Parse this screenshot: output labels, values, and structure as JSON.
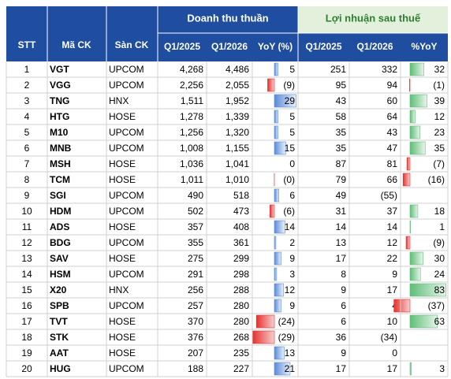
{
  "table": {
    "header": {
      "stt": "STT",
      "ticker": "Mã CK",
      "exchange": "Sàn CK",
      "revenue": "Doanh thu thuần",
      "profit": "Lợi nhuận sau thuế",
      "revenue_cols": [
        "Q1/2025",
        "Q1/2026",
        "YoY (%)"
      ],
      "profit_cols": [
        "Q1/2025",
        "Q1/2026",
        "%YoY"
      ]
    },
    "rows": [
      {
        "stt": 1,
        "ticker": "VGT",
        "exchange": "UPCOM",
        "revenue": [
          {
            "value": 4268,
            "label": "4,268"
          },
          {
            "value": 4486,
            "label": "4,486"
          },
          5
        ],
        "profit": [
          251,
          332,
          32
        ]
      },
      {
        "stt": 2,
        "ticker": "VGG",
        "exchange": "UPCOM",
        "revenue": [
          {
            "value": 2256,
            "label": "2,256"
          },
          {
            "value": 2055,
            "label": "2,055"
          },
          {
            "value": -9,
            "label": "(9)"
          }
        ],
        "profit": [
          95,
          94,
          {
            "value": -1,
            "label": "(1)"
          }
        ]
      },
      {
        "stt": 3,
        "ticker": "TNG",
        "exchange": "HNX",
        "revenue": [
          {
            "value": 1511,
            "label": "1,511"
          },
          {
            "value": 1952,
            "label": "1,952"
          },
          29
        ],
        "profit": [
          43,
          60,
          39
        ]
      },
      {
        "stt": 4,
        "ticker": "HTG",
        "exchange": "HOSE",
        "revenue": [
          {
            "value": 1278,
            "label": "1,278"
          },
          {
            "value": 1339,
            "label": "1,339"
          },
          5
        ],
        "profit": [
          58,
          64,
          12
        ]
      },
      {
        "stt": 5,
        "ticker": "M10",
        "exchange": "UPCOM",
        "revenue": [
          {
            "value": 1256,
            "label": "1,256"
          },
          {
            "value": 1320,
            "label": "1,320"
          },
          5
        ],
        "profit": [
          35,
          43,
          23
        ]
      },
      {
        "stt": 6,
        "ticker": "MNB",
        "exchange": "UPCOM",
        "revenue": [
          {
            "value": 1008,
            "label": "1,008"
          },
          {
            "value": 1155,
            "label": "1,155"
          },
          15
        ],
        "profit": [
          35,
          47,
          35
        ]
      },
      {
        "stt": 7,
        "ticker": "MSH",
        "exchange": "HOSE",
        "revenue": [
          {
            "value": 1036,
            "label": "1,036"
          },
          {
            "value": 1041,
            "label": "1,041"
          },
          0
        ],
        "profit": [
          87,
          81,
          {
            "value": -7,
            "label": "(7)"
          }
        ]
      },
      {
        "stt": 8,
        "ticker": "TCM",
        "exchange": "HOSE",
        "revenue": [
          {
            "value": 1011,
            "label": "1,011"
          },
          {
            "value": 1010,
            "label": "1,010"
          },
          {
            "value": -0.1,
            "label": "(0)"
          }
        ],
        "profit": [
          79,
          66,
          {
            "value": -16,
            "label": "(16)"
          }
        ]
      },
      {
        "stt": 9,
        "ticker": "SGI",
        "exchange": "UPCOM",
        "revenue": [
          490,
          518,
          6
        ],
        "profit": [
          49,
          {
            "value": -55,
            "label": "(55)"
          },
          null
        ]
      },
      {
        "stt": 10,
        "ticker": "HDM",
        "exchange": "UPCOM",
        "revenue": [
          502,
          473,
          {
            "value": -6,
            "label": "(6)"
          }
        ],
        "profit": [
          31,
          37,
          18
        ]
      },
      {
        "stt": 11,
        "ticker": "ADS",
        "exchange": "HOSE",
        "revenue": [
          357,
          408,
          14
        ],
        "profit": [
          14,
          14,
          1
        ]
      },
      {
        "stt": 12,
        "ticker": "BDG",
        "exchange": "UPCOM",
        "revenue": [
          355,
          361,
          2
        ],
        "profit": [
          13,
          12,
          {
            "value": -9,
            "label": "(9)"
          }
        ]
      },
      {
        "stt": 13,
        "ticker": "SAV",
        "exchange": "HOSE",
        "revenue": [
          275,
          299,
          9
        ],
        "profit": [
          17,
          22,
          30
        ]
      },
      {
        "stt": 14,
        "ticker": "HSM",
        "exchange": "UPCOM",
        "revenue": [
          291,
          298,
          3
        ],
        "profit": [
          8,
          9,
          24
        ]
      },
      {
        "stt": 15,
        "ticker": "X20",
        "exchange": "HNX",
        "revenue": [
          256,
          288,
          12
        ],
        "profit": [
          9,
          17,
          83
        ]
      },
      {
        "stt": 16,
        "ticker": "SPB",
        "exchange": "UPCOM",
        "revenue": [
          257,
          280,
          9
        ],
        "profit": [
          6,
          4,
          {
            "value": -37,
            "label": "(37)"
          }
        ]
      },
      {
        "stt": 17,
        "ticker": "TVT",
        "exchange": "HOSE",
        "revenue": [
          370,
          280,
          {
            "value": -24,
            "label": "(24)"
          }
        ],
        "profit": [
          6,
          10,
          63
        ]
      },
      {
        "stt": 18,
        "ticker": "STK",
        "exchange": "HOSE",
        "revenue": [
          376,
          268,
          {
            "value": -29,
            "label": "(29)"
          }
        ],
        "profit": [
          36,
          {
            "value": -34,
            "label": "(34)"
          },
          null
        ]
      },
      {
        "stt": 19,
        "ticker": "AAT",
        "exchange": "HOSE",
        "revenue": [
          207,
          235,
          13
        ],
        "profit": [
          9,
          0,
          null
        ]
      },
      {
        "stt": 20,
        "ticker": "HUG",
        "exchange": "UPCOM",
        "revenue": [
          188,
          227,
          21
        ],
        "profit": [
          17,
          17,
          3
        ]
      }
    ]
  }
}
